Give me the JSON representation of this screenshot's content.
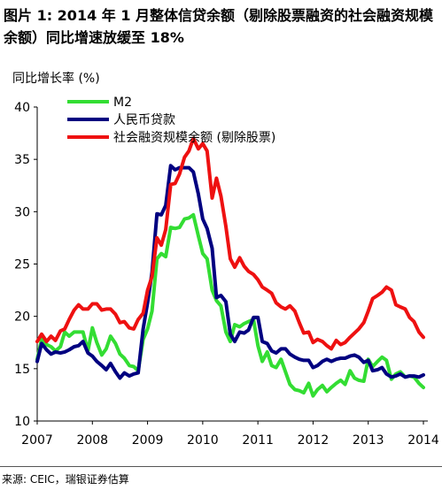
{
  "title": "图片 1: 2014 年 1 月整体信贷余额（剔除股票融资的社会融资规模余额）同比增速放缓至 18%",
  "source": "来源: CEIC，瑞银证券估算",
  "chart_data": {
    "type": "line",
    "ylabel": "同比增长率 (%)",
    "xlabel": "",
    "ylim": [
      10,
      40
    ],
    "xlim": [
      2007,
      2014.08
    ],
    "y_ticks": [
      10,
      15,
      20,
      25,
      30,
      35,
      40
    ],
    "x_ticks": [
      2007,
      2008,
      2009,
      2010,
      2011,
      2012,
      2013,
      2014
    ],
    "grid": false,
    "legend_position": "top-left",
    "series": [
      {
        "name": "M2",
        "color": "#33dd33",
        "x": [
          2007.0,
          2007.08,
          2007.17,
          2007.25,
          2007.33,
          2007.42,
          2007.5,
          2007.58,
          2007.67,
          2007.75,
          2007.83,
          2007.92,
          2008.0,
          2008.08,
          2008.17,
          2008.25,
          2008.33,
          2008.42,
          2008.5,
          2008.58,
          2008.67,
          2008.75,
          2008.83,
          2008.92,
          2009.0,
          2009.08,
          2009.17,
          2009.25,
          2009.33,
          2009.42,
          2009.5,
          2009.58,
          2009.67,
          2009.75,
          2009.83,
          2009.92,
          2010.0,
          2010.08,
          2010.17,
          2010.25,
          2010.33,
          2010.42,
          2010.5,
          2010.58,
          2010.67,
          2010.75,
          2010.83,
          2010.92,
          2011.0,
          2011.08,
          2011.17,
          2011.25,
          2011.33,
          2011.42,
          2011.5,
          2011.58,
          2011.67,
          2011.75,
          2011.83,
          2011.92,
          2012.0,
          2012.08,
          2012.17,
          2012.25,
          2012.33,
          2012.42,
          2012.5,
          2012.58,
          2012.67,
          2012.75,
          2012.83,
          2012.92,
          2013.0,
          2013.08,
          2013.17,
          2013.25,
          2013.33,
          2013.42,
          2013.5,
          2013.58,
          2013.67,
          2013.75,
          2013.83,
          2013.92,
          2014.0
        ],
        "values": [
          15.9,
          17.8,
          17.3,
          17.1,
          16.7,
          17.1,
          18.5,
          18.1,
          18.5,
          18.5,
          18.5,
          16.7,
          18.9,
          17.5,
          16.3,
          16.9,
          18.1,
          17.4,
          16.4,
          16.0,
          15.3,
          15.2,
          14.8,
          17.8,
          18.8,
          20.5,
          25.5,
          26.0,
          25.7,
          28.5,
          28.4,
          28.5,
          29.3,
          29.4,
          29.7,
          27.7,
          26.0,
          25.5,
          22.5,
          21.5,
          21.0,
          18.5,
          17.6,
          19.2,
          19.0,
          19.3,
          19.5,
          19.7,
          17.2,
          15.7,
          16.6,
          15.3,
          15.1,
          15.9,
          14.7,
          13.5,
          13.0,
          12.9,
          12.7,
          13.6,
          12.4,
          13.0,
          13.4,
          12.8,
          13.2,
          13.6,
          13.9,
          13.5,
          14.8,
          14.1,
          13.9,
          13.8,
          15.9,
          15.2,
          15.7,
          16.1,
          15.8,
          14.0,
          14.5,
          14.7,
          14.2,
          14.3,
          14.2,
          13.6,
          13.2
        ]
      },
      {
        "name": "人民币贷款",
        "color": "#000080",
        "x": [
          2007.0,
          2007.08,
          2007.17,
          2007.25,
          2007.33,
          2007.42,
          2007.5,
          2007.58,
          2007.67,
          2007.75,
          2007.83,
          2007.92,
          2008.0,
          2008.08,
          2008.17,
          2008.25,
          2008.33,
          2008.42,
          2008.5,
          2008.58,
          2008.67,
          2008.75,
          2008.83,
          2008.92,
          2009.0,
          2009.08,
          2009.17,
          2009.25,
          2009.33,
          2009.42,
          2009.5,
          2009.58,
          2009.67,
          2009.75,
          2009.83,
          2009.92,
          2010.0,
          2010.08,
          2010.17,
          2010.25,
          2010.33,
          2010.42,
          2010.5,
          2010.58,
          2010.67,
          2010.75,
          2010.83,
          2010.92,
          2011.0,
          2011.08,
          2011.17,
          2011.25,
          2011.33,
          2011.42,
          2011.5,
          2011.58,
          2011.67,
          2011.75,
          2011.83,
          2011.92,
          2012.0,
          2012.08,
          2012.17,
          2012.25,
          2012.33,
          2012.42,
          2012.5,
          2012.58,
          2012.67,
          2012.75,
          2012.83,
          2012.92,
          2013.0,
          2013.08,
          2013.17,
          2013.25,
          2013.33,
          2013.42,
          2013.5,
          2013.58,
          2013.67,
          2013.75,
          2013.83,
          2013.92,
          2014.0
        ],
        "values": [
          15.7,
          17.4,
          16.8,
          16.4,
          16.6,
          16.5,
          16.6,
          16.8,
          17.1,
          17.2,
          17.6,
          16.5,
          16.2,
          15.7,
          15.3,
          14.9,
          15.5,
          14.7,
          14.1,
          14.6,
          14.3,
          14.5,
          14.6,
          18.8,
          21.3,
          24.2,
          29.8,
          29.7,
          30.6,
          34.4,
          34.0,
          34.2,
          34.2,
          34.2,
          33.8,
          31.7,
          29.3,
          28.4,
          26.5,
          21.8,
          22.0,
          21.4,
          18.3,
          17.6,
          18.5,
          18.4,
          18.7,
          19.9,
          19.9,
          17.6,
          17.4,
          16.7,
          16.5,
          16.9,
          16.9,
          16.4,
          16.1,
          15.9,
          15.8,
          15.8,
          15.1,
          15.3,
          15.7,
          15.9,
          15.7,
          15.9,
          16.0,
          16.0,
          16.2,
          16.3,
          16.1,
          15.6,
          15.8,
          14.8,
          14.9,
          15.1,
          14.5,
          14.2,
          14.3,
          14.5,
          14.2,
          14.3,
          14.3,
          14.2,
          14.4
        ]
      },
      {
        "name": "社会融资规模余额 (剔除股票)",
        "color": "#ee1111",
        "x": [
          2007.0,
          2007.08,
          2007.17,
          2007.25,
          2007.33,
          2007.42,
          2007.5,
          2007.58,
          2007.67,
          2007.75,
          2007.83,
          2007.92,
          2008.0,
          2008.08,
          2008.17,
          2008.25,
          2008.33,
          2008.42,
          2008.5,
          2008.58,
          2008.67,
          2008.75,
          2008.83,
          2008.92,
          2009.0,
          2009.08,
          2009.17,
          2009.25,
          2009.33,
          2009.42,
          2009.5,
          2009.58,
          2009.67,
          2009.75,
          2009.83,
          2009.92,
          2010.0,
          2010.08,
          2010.17,
          2010.25,
          2010.33,
          2010.42,
          2010.5,
          2010.58,
          2010.67,
          2010.75,
          2010.83,
          2010.92,
          2011.0,
          2011.08,
          2011.17,
          2011.25,
          2011.33,
          2011.42,
          2011.5,
          2011.58,
          2011.67,
          2011.75,
          2011.83,
          2011.92,
          2012.0,
          2012.08,
          2012.17,
          2012.25,
          2012.33,
          2012.42,
          2012.5,
          2012.58,
          2012.67,
          2012.75,
          2012.83,
          2012.92,
          2013.0,
          2013.08,
          2013.17,
          2013.25,
          2013.33,
          2013.42,
          2013.5,
          2013.58,
          2013.67,
          2013.75,
          2013.83,
          2013.92,
          2014.0
        ],
        "values": [
          17.6,
          18.3,
          17.6,
          18.1,
          17.7,
          18.6,
          18.8,
          19.7,
          20.6,
          21.1,
          20.7,
          20.7,
          21.2,
          21.2,
          20.6,
          20.7,
          20.7,
          20.2,
          19.4,
          19.5,
          18.9,
          18.8,
          19.7,
          20.3,
          22.5,
          23.8,
          27.5,
          26.8,
          28.3,
          32.6,
          32.7,
          33.6,
          35.2,
          35.8,
          37.0,
          36.0,
          36.5,
          35.8,
          31.3,
          33.2,
          31.5,
          28.6,
          25.5,
          24.7,
          25.6,
          24.8,
          24.3,
          24.0,
          23.5,
          22.8,
          22.5,
          22.2,
          21.3,
          20.9,
          20.7,
          21.0,
          20.5,
          19.4,
          18.4,
          18.5,
          17.5,
          17.8,
          17.6,
          17.2,
          16.9,
          17.7,
          17.3,
          17.5,
          18.0,
          18.4,
          18.8,
          19.4,
          20.5,
          21.7,
          22.0,
          22.3,
          22.8,
          22.5,
          21.1,
          20.9,
          20.7,
          19.9,
          19.5,
          18.5,
          18.0
        ]
      }
    ]
  }
}
